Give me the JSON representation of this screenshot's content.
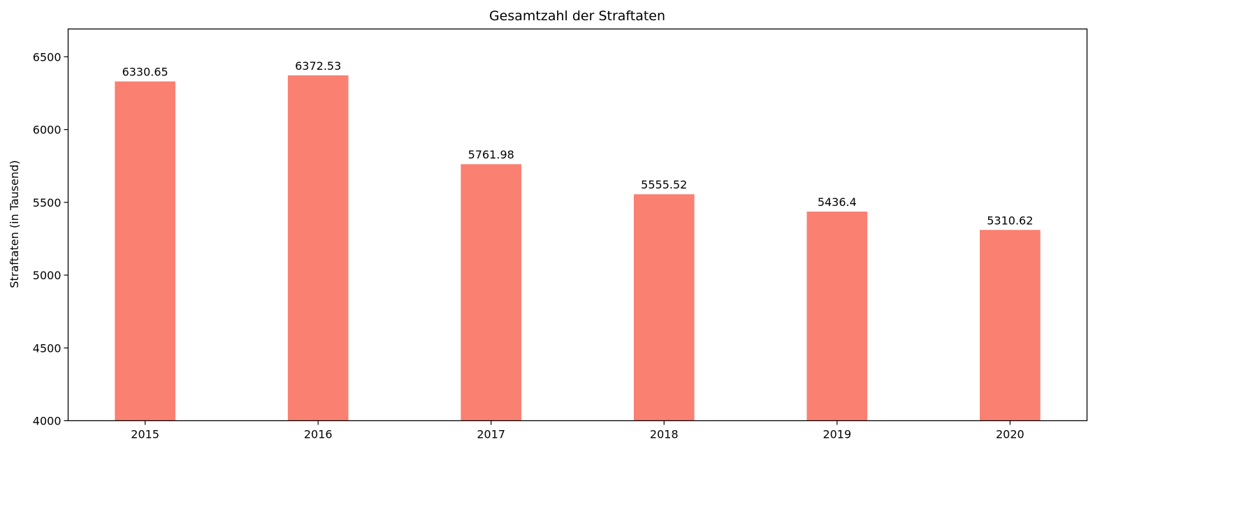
{
  "chart_data": {
    "type": "bar",
    "title": "Gesamtzahl der Straftaten",
    "xlabel": "",
    "ylabel": "Straftaten (in Tausend)",
    "categories": [
      "2015",
      "2016",
      "2017",
      "2018",
      "2019",
      "2020"
    ],
    "values": [
      6330.65,
      6372.53,
      5761.98,
      5555.52,
      5436.4,
      5310.62
    ],
    "data_labels": [
      "6330.65",
      "6372.53",
      "5761.98",
      "5555.52",
      "5436.4",
      "5310.62"
    ],
    "ylim": [
      4000,
      6691
    ],
    "yticks": [
      4000,
      4500,
      5000,
      5500,
      6000,
      6500
    ],
    "grid": false,
    "bar_color": "#FA8072"
  }
}
